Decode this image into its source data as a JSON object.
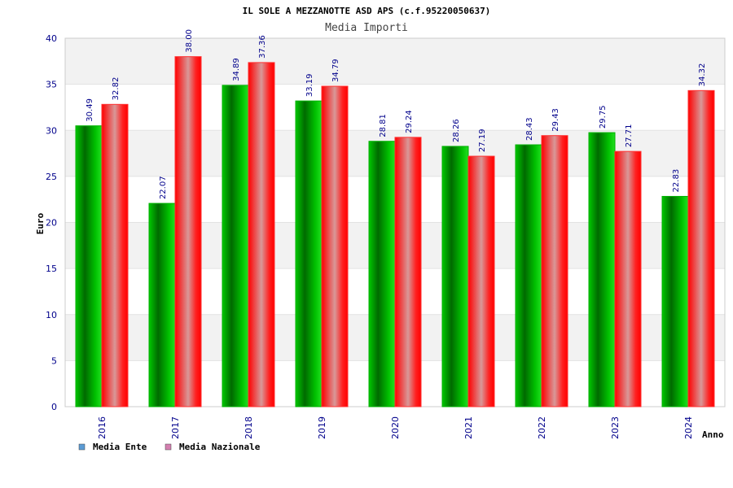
{
  "chart_data": {
    "type": "bar",
    "title": "IL SOLE A MEZZANOTTE ASD APS (c.f.95220050637)",
    "subtitle": "Media Importi",
    "xlabel": "Anno",
    "ylabel": "Euro",
    "ylim": [
      0,
      40
    ],
    "yticks": [
      0,
      5,
      10,
      15,
      20,
      25,
      30,
      35,
      40
    ],
    "grid": "horizontal bands",
    "legend_position": "bottom-left",
    "categories": [
      "2016",
      "2017",
      "2018",
      "2019",
      "2020",
      "2021",
      "2022",
      "2023",
      "2024"
    ],
    "series": [
      {
        "name": "Media Ente",
        "legend_color": "#5b9bd5",
        "bar_color": "#00a000",
        "values": [
          30.49,
          22.07,
          34.89,
          33.19,
          28.81,
          28.26,
          28.43,
          29.75,
          22.83
        ],
        "labels": [
          "30.49",
          "22.07",
          "34.89",
          "33.19",
          "28.81",
          "28.26",
          "28.43",
          "29.75",
          "22.83"
        ]
      },
      {
        "name": "Media Nazionale",
        "legend_color": "#d47fb0",
        "bar_color": "#ff0000",
        "values": [
          32.82,
          38.0,
          37.36,
          34.79,
          29.24,
          27.19,
          29.43,
          27.71,
          34.32
        ],
        "labels": [
          "32.82",
          "38.00",
          "37.36",
          "34.79",
          "29.24",
          "27.19",
          "29.43",
          "27.71",
          "34.32"
        ]
      }
    ]
  }
}
